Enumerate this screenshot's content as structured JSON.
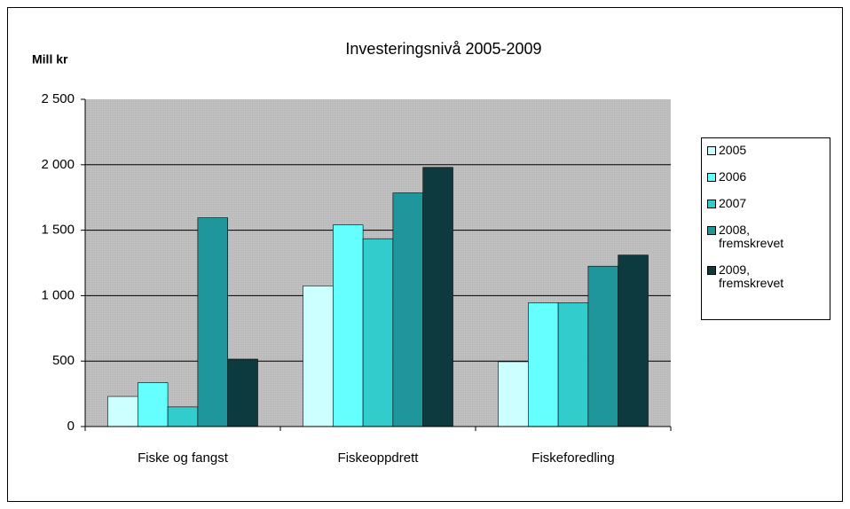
{
  "chart_data": {
    "type": "bar",
    "title": "Investeringsnivå 2005-2009",
    "y_label": "Mill kr",
    "categories": [
      "Fiske og fangst",
      "Fiskeoppdrett",
      "Fiskeforedling"
    ],
    "series": [
      {
        "name": "2005",
        "color": "#ccffff",
        "values": [
          230,
          1075,
          495
        ]
      },
      {
        "name": "2006",
        "color": "#66ffff",
        "values": [
          335,
          1540,
          945
        ]
      },
      {
        "name": "2007",
        "color": "#33cccc",
        "values": [
          150,
          1435,
          945
        ]
      },
      {
        "name": "2008, fremskrevet",
        "color": "#1f969c",
        "values": [
          1595,
          1785,
          1225
        ]
      },
      {
        "name": "2009, fremskrevet",
        "color": "#0c3a3e",
        "values": [
          515,
          1980,
          1310
        ]
      }
    ],
    "ylim": [
      0,
      2500
    ],
    "yticks": [
      0,
      500,
      {
        "value": 1000,
        "label": "1 000"
      },
      {
        "value": 1500,
        "label": "1 500"
      },
      {
        "value": 2000,
        "label": "2 000"
      },
      {
        "value": 2500,
        "label": "2 500"
      }
    ],
    "grid": true,
    "legend": "right"
  }
}
